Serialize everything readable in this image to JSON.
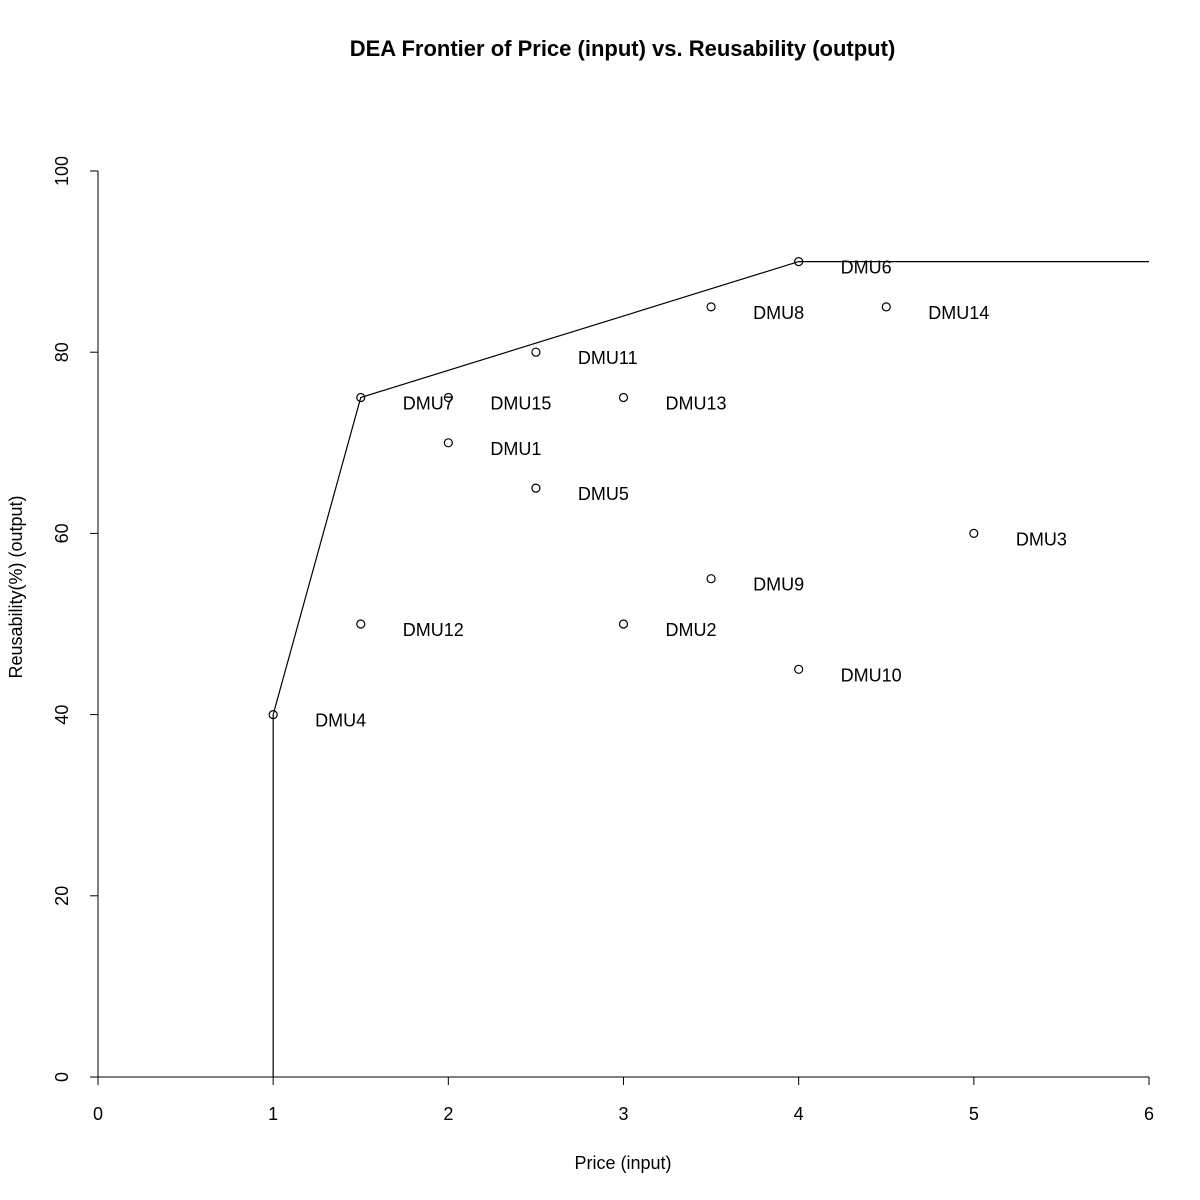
{
  "chart_data": {
    "type": "scatter",
    "title": "DEA Frontier of Price (input) vs. Reusability (output)",
    "xlabel": "Price (input)",
    "ylabel": "Reusability(%) (output)",
    "xlim": [
      0,
      6
    ],
    "ylim": [
      0,
      100
    ],
    "xticks": [
      "0",
      "1",
      "2",
      "3",
      "4",
      "5",
      "6"
    ],
    "yticks": [
      "0",
      "20",
      "40",
      "60",
      "80",
      "100"
    ],
    "grid": false,
    "points": [
      {
        "label": "DMU1",
        "x": 2.0,
        "y": 70
      },
      {
        "label": "DMU2",
        "x": 3.0,
        "y": 50
      },
      {
        "label": "DMU3",
        "x": 5.0,
        "y": 60
      },
      {
        "label": "DMU4",
        "x": 1.0,
        "y": 40
      },
      {
        "label": "DMU5",
        "x": 2.5,
        "y": 65
      },
      {
        "label": "DMU6",
        "x": 4.0,
        "y": 90
      },
      {
        "label": "DMU7",
        "x": 1.5,
        "y": 75
      },
      {
        "label": "DMU8",
        "x": 3.5,
        "y": 85
      },
      {
        "label": "DMU9",
        "x": 3.5,
        "y": 55
      },
      {
        "label": "DMU10",
        "x": 4.0,
        "y": 45
      },
      {
        "label": "DMU11",
        "x": 2.5,
        "y": 80
      },
      {
        "label": "DMU12",
        "x": 1.5,
        "y": 50
      },
      {
        "label": "DMU13",
        "x": 3.0,
        "y": 75
      },
      {
        "label": "DMU14",
        "x": 4.5,
        "y": 85
      },
      {
        "label": "DMU15",
        "x": 2.0,
        "y": 75
      }
    ],
    "frontier": {
      "x": [
        1.0,
        1.0,
        1.5,
        4.0,
        6.0
      ],
      "y": [
        0,
        40,
        75,
        90,
        90
      ]
    }
  }
}
